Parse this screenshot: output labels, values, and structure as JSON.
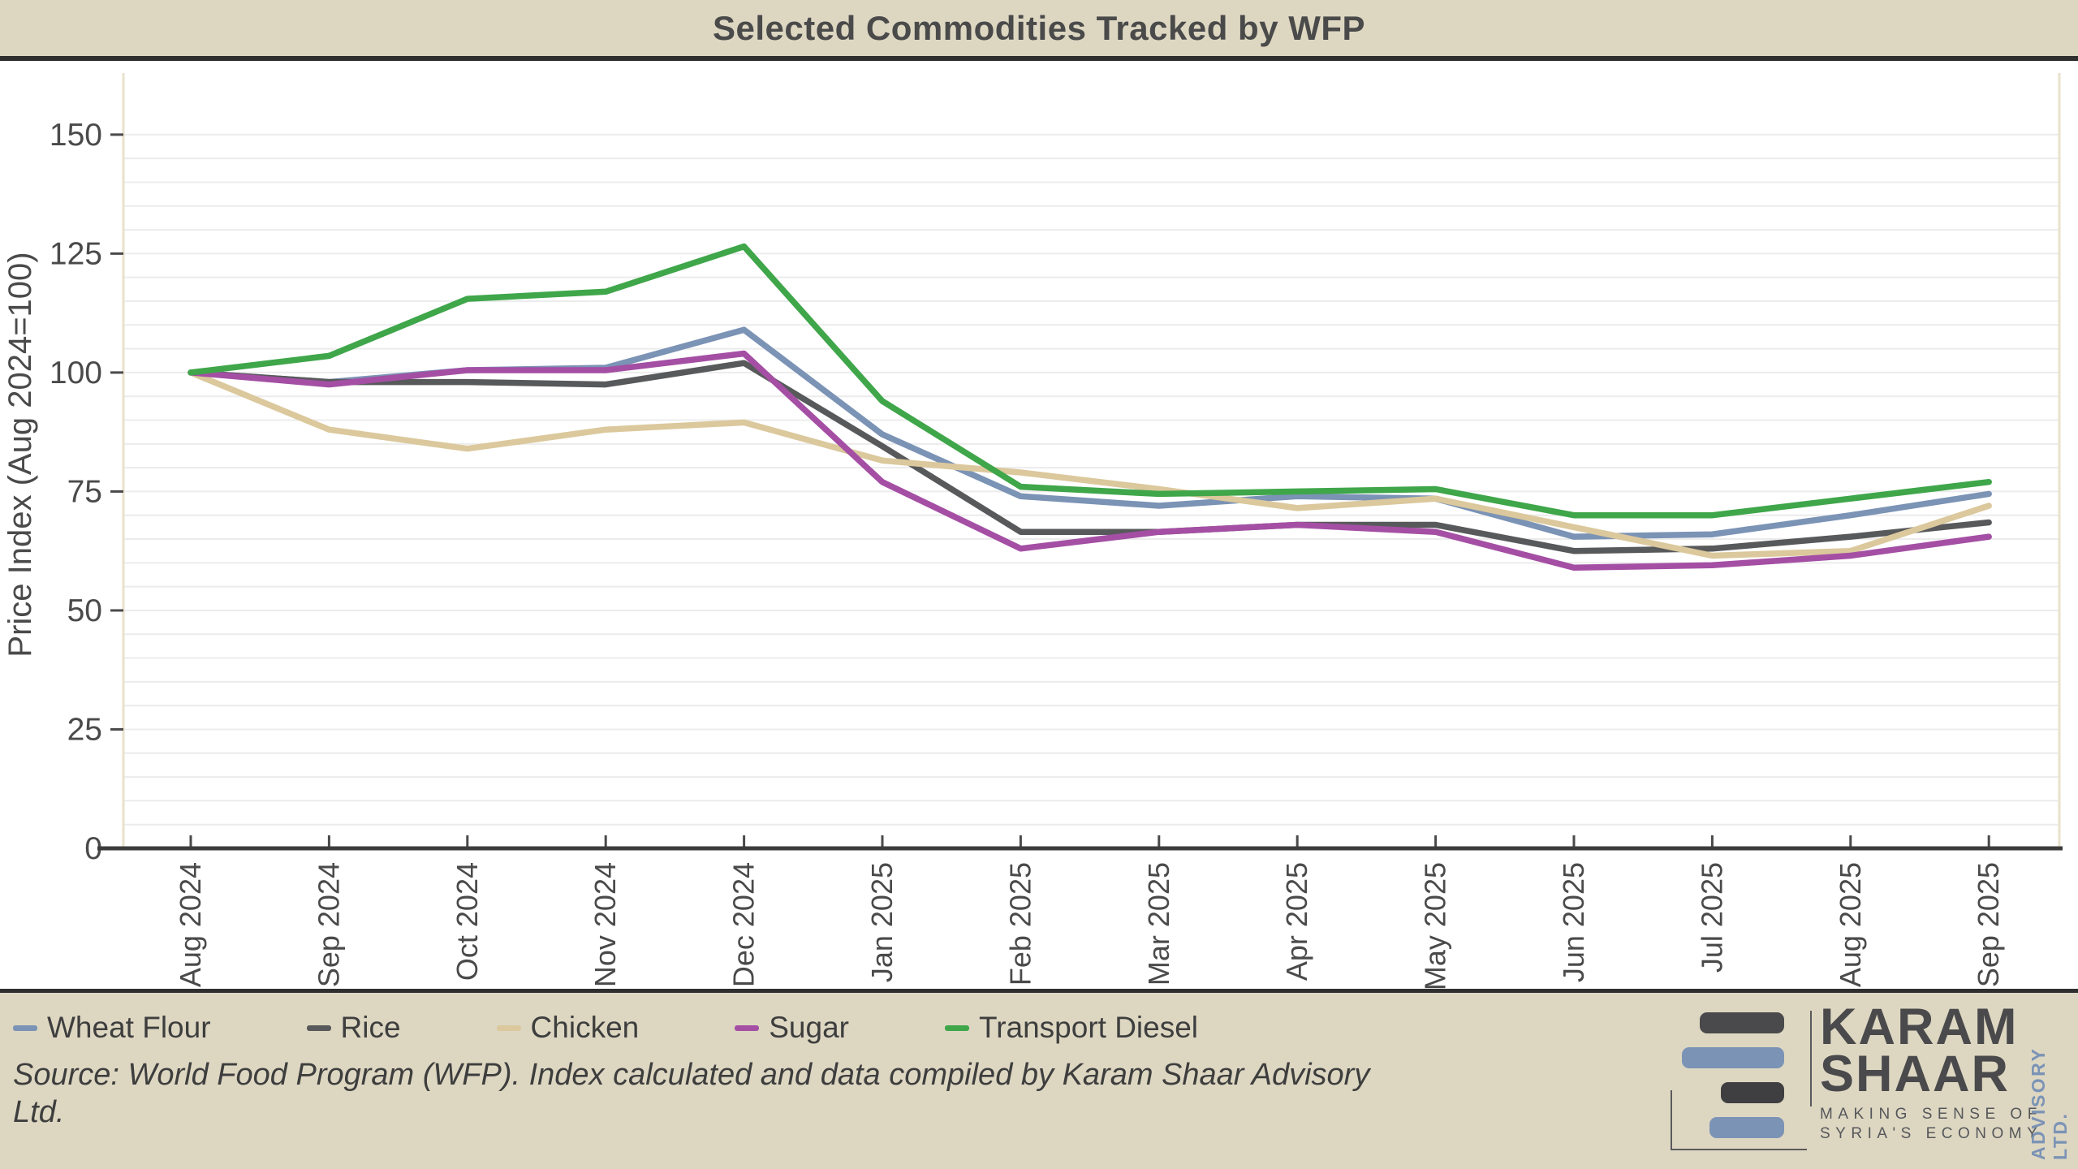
{
  "header": {
    "title": "Selected Commodities Tracked by WFP"
  },
  "chart_data": {
    "type": "line",
    "title": "Selected Commodities Tracked by WFP",
    "xlabel": "",
    "ylabel": "Price Index (Aug 2024=100)",
    "ylim": [
      0,
      150
    ],
    "y_ticks": [
      0,
      25,
      50,
      75,
      100,
      125,
      150
    ],
    "minor_grid_step": 5,
    "grid": "horizontal-minor",
    "legend_position": "bottom-left",
    "categories": [
      "Aug 2024",
      "Sep 2024",
      "Oct 2024",
      "Nov 2024",
      "Dec 2024",
      "Jan 2025",
      "Feb 2025",
      "Mar 2025",
      "Apr 2025",
      "May 2025",
      "Jun 2025",
      "Jul 2025",
      "Aug 2025",
      "Sep 2025"
    ],
    "series": [
      {
        "name": "Wheat Flour",
        "color": "#7b93b5",
        "values": [
          100,
          98,
          100.5,
          101,
          109,
          87,
          74,
          72,
          74,
          73.5,
          65.5,
          66,
          70,
          74.5
        ]
      },
      {
        "name": "Rice",
        "color": "#58595b",
        "values": [
          100,
          98,
          98,
          97.5,
          102,
          84.5,
          66.5,
          66.5,
          68,
          68,
          62.5,
          63,
          65.5,
          68.5
        ]
      },
      {
        "name": "Chicken",
        "color": "#dbc89c",
        "values": [
          100,
          88,
          84,
          88,
          89.5,
          81.5,
          79,
          75.5,
          71.5,
          73.5,
          67.5,
          61.5,
          62.5,
          72
        ]
      },
      {
        "name": "Sugar",
        "color": "#a44fa4",
        "values": [
          100,
          97.5,
          100.5,
          100.5,
          104,
          77,
          63,
          66.5,
          68,
          66.5,
          59,
          59.5,
          61.5,
          65.5
        ]
      },
      {
        "name": "Transport Diesel",
        "color": "#3fa64a",
        "values": [
          100,
          103.5,
          115.5,
          117,
          126.5,
          94,
          76,
          74.5,
          75,
          75.5,
          70,
          70,
          73.5,
          77
        ]
      }
    ]
  },
  "footer": {
    "source_text": "Source: World Food Program (WFP). Index calculated and data compiled by Karam Shaar Advisory Ltd.",
    "logo": {
      "brand_line1": "KARAM",
      "brand_line2": "SHAAR",
      "tagline_line1": "MAKING SENSE OF",
      "tagline_line2": "SYRIA'S ECONOMY",
      "side_text": "ADVISORY LTD."
    }
  },
  "colors": {
    "background": "#ddd7c2",
    "plot_background": "#ffffff",
    "gridline": "#ececec",
    "axis_line": "#3c3c3c",
    "spine": "#e9e2cc",
    "tick_label": "#4a4a4a",
    "header_border": "#2e2e2e"
  }
}
